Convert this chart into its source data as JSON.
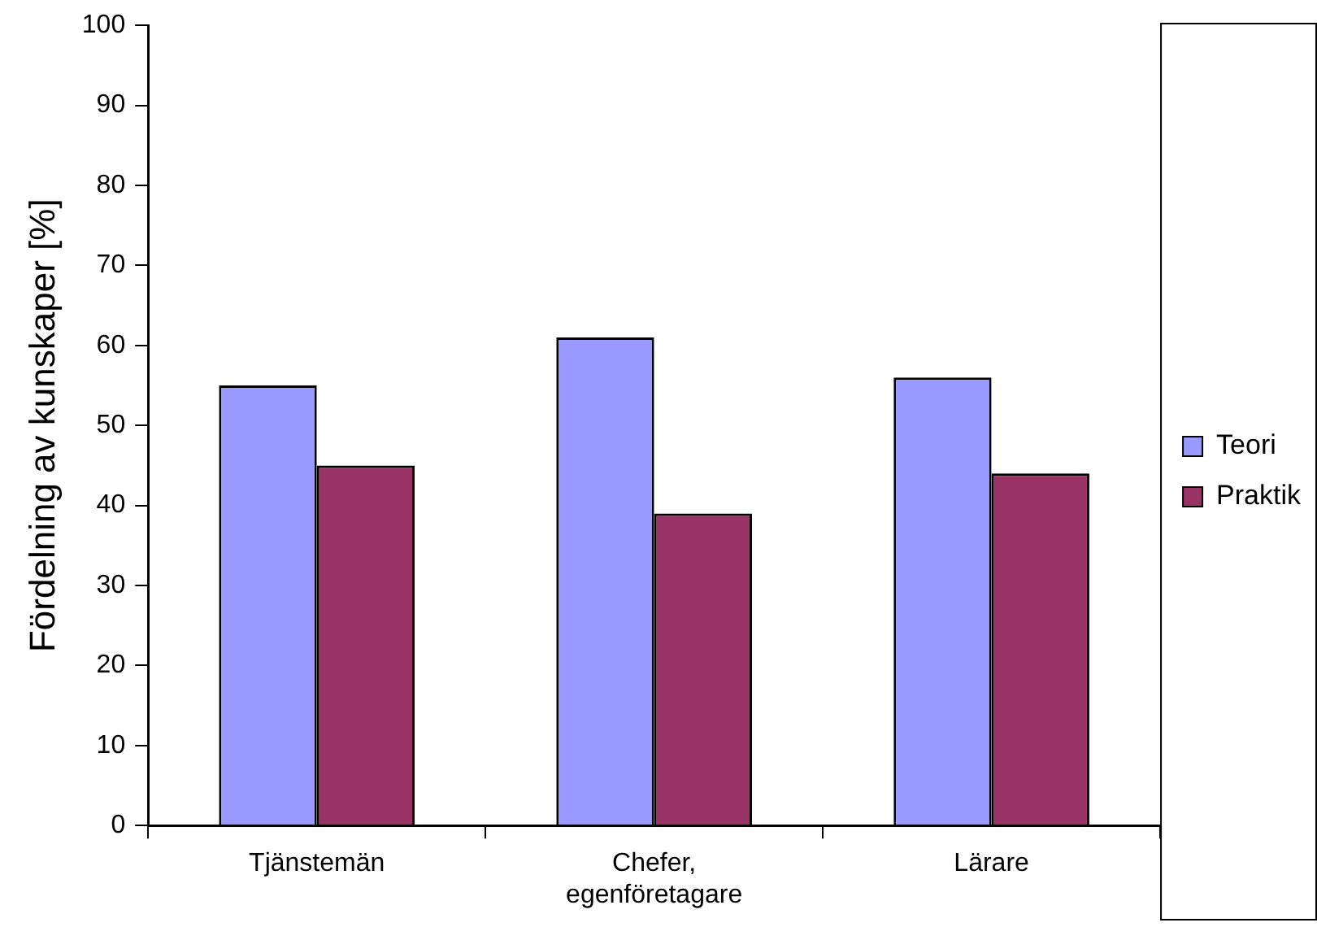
{
  "chart_data": {
    "type": "bar",
    "ylabel": "Fördelning av kunskaper [%]",
    "categories": [
      "Tjänstemän",
      "Chefer, egenföretagare",
      "Lärare"
    ],
    "series": [
      {
        "name": "Teori",
        "color": "#9999ff",
        "values": [
          55,
          61,
          56
        ]
      },
      {
        "name": "Praktik",
        "color": "#993366",
        "values": [
          45,
          39,
          44
        ]
      }
    ],
    "ylim": [
      0,
      100
    ],
    "yticks": [
      0,
      10,
      20,
      30,
      40,
      50,
      60,
      70,
      80,
      90,
      100
    ],
    "grid": false,
    "legend": "right"
  }
}
